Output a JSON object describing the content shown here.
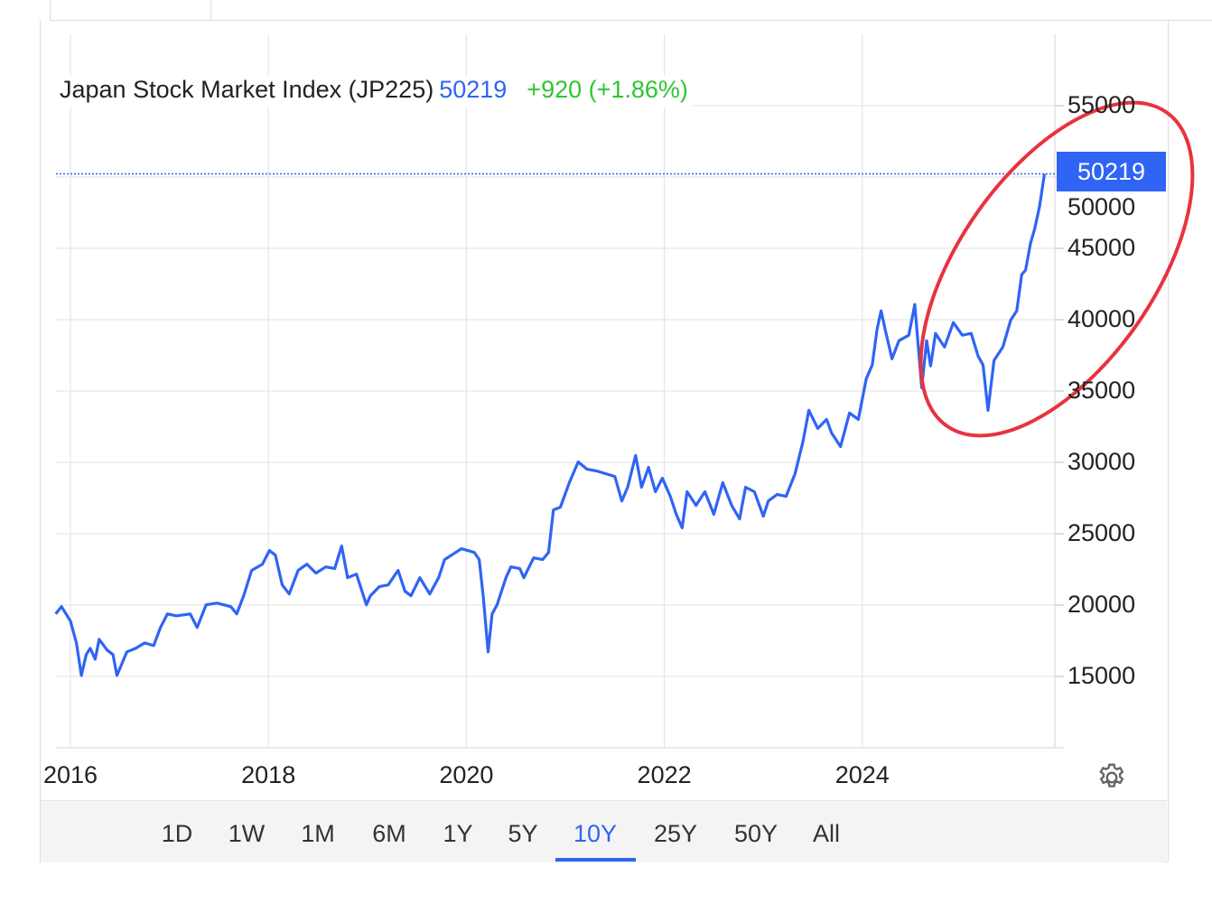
{
  "header": {
    "title": "Japan Stock Market Index (JP225)",
    "price": "50219",
    "change": "+920 (+1.86%)"
  },
  "price_label": "50219",
  "range_tabs": [
    "1D",
    "1W",
    "1M",
    "6M",
    "1Y",
    "5Y",
    "10Y",
    "25Y",
    "50Y",
    "All"
  ],
  "active_range": "10Y",
  "colors": {
    "line": "#2f64f5",
    "up": "#2fc52f",
    "annotation": "#e8333f"
  },
  "chart_data": {
    "type": "line",
    "title": "Japan Stock Market Index (JP225)",
    "xlabel": "",
    "ylabel": "",
    "xlim": [
      2015.85,
      2025.95
    ],
    "ylim": [
      10000,
      60000
    ],
    "x_ticks": [
      "2016",
      "2018",
      "2020",
      "2022",
      "2024"
    ],
    "x_tick_values": [
      2016,
      2018,
      2020,
      2022,
      2024
    ],
    "y_ticks": [
      "15000",
      "20000",
      "25000",
      "30000",
      "35000",
      "40000",
      "45000",
      "50000",
      "55000"
    ],
    "y_tick_values": [
      15000,
      20000,
      25000,
      30000,
      35000,
      40000,
      45000,
      50000,
      55000
    ],
    "grid": true,
    "last_value": 50219,
    "annotation": "red ellipse highlighting 2024-2025 rally",
    "series": [
      {
        "name": "JP225",
        "x": [
          2015.85,
          2015.91,
          2016.0,
          2016.06,
          2016.11,
          2016.16,
          2016.2,
          2016.25,
          2016.29,
          2016.37,
          2016.43,
          2016.47,
          2016.57,
          2016.66,
          2016.75,
          2016.84,
          2016.91,
          2016.98,
          2017.07,
          2017.21,
          2017.28,
          2017.37,
          2017.48,
          2017.62,
          2017.68,
          2017.75,
          2017.83,
          2017.94,
          2018.01,
          2018.07,
          2018.14,
          2018.21,
          2018.3,
          2018.39,
          2018.48,
          2018.58,
          2018.67,
          2018.74,
          2018.8,
          2018.89,
          2018.99,
          2019.03,
          2019.12,
          2019.21,
          2019.31,
          2019.38,
          2019.44,
          2019.53,
          2019.63,
          2019.72,
          2019.78,
          2019.85,
          2019.95,
          2020.08,
          2020.13,
          2020.17,
          2020.22,
          2020.26,
          2020.31,
          2020.4,
          2020.45,
          2020.54,
          2020.58,
          2020.68,
          2020.77,
          2020.83,
          2020.88,
          2020.95,
          2021.04,
          2021.13,
          2021.22,
          2021.32,
          2021.41,
          2021.5,
          2021.57,
          2021.63,
          2021.71,
          2021.77,
          2021.84,
          2021.91,
          2021.98,
          2022.06,
          2022.12,
          2022.18,
          2022.23,
          2022.32,
          2022.41,
          2022.5,
          2022.59,
          2022.68,
          2022.76,
          2022.82,
          2022.91,
          2023.0,
          2023.05,
          2023.14,
          2023.23,
          2023.32,
          2023.4,
          2023.46,
          2023.55,
          2023.64,
          2023.69,
          2023.78,
          2023.87,
          2023.96,
          2024.04,
          2024.1,
          2024.15,
          2024.19,
          2024.24,
          2024.3,
          2024.37,
          2024.47,
          2024.53,
          2024.6,
          2024.65,
          2024.69,
          2024.74,
          2024.83,
          2024.92,
          2025.01,
          2025.1,
          2025.17,
          2025.22,
          2025.27,
          2025.33,
          2025.42,
          2025.5,
          2025.56,
          2025.61,
          2025.65,
          2025.7,
          2025.74,
          2025.79,
          2025.84
        ],
        "values": [
          19380,
          19890,
          18880,
          17350,
          15070,
          16530,
          16970,
          16210,
          17600,
          16850,
          16530,
          15070,
          16720,
          16970,
          17350,
          17160,
          18430,
          19380,
          19250,
          19380,
          18430,
          20020,
          20140,
          19890,
          19380,
          20650,
          22430,
          22870,
          23820,
          23500,
          21410,
          20780,
          22430,
          22870,
          22240,
          22680,
          22560,
          24140,
          21920,
          22170,
          20020,
          20650,
          21290,
          21410,
          22430,
          20970,
          20650,
          21920,
          20780,
          21920,
          23190,
          23500,
          23950,
          23690,
          23190,
          20650,
          16720,
          19380,
          20020,
          21920,
          22680,
          22560,
          21920,
          23310,
          23190,
          23690,
          26670,
          26860,
          28580,
          30030,
          29520,
          29390,
          29200,
          29010,
          27300,
          28260,
          30480,
          28260,
          29650,
          27940,
          28890,
          27620,
          26360,
          25410,
          27940,
          26990,
          27940,
          26360,
          28580,
          26990,
          26040,
          28260,
          27940,
          26230,
          27300,
          27750,
          27620,
          29200,
          31430,
          33650,
          32380,
          33010,
          32060,
          31110,
          33460,
          33010,
          35870,
          36820,
          39350,
          40620,
          39040,
          37260,
          38530,
          38910,
          41070,
          35230,
          38530,
          36760,
          39040,
          38080,
          39800,
          38910,
          39040,
          37450,
          36820,
          33650,
          37130,
          38080,
          39990,
          40620,
          43160,
          43480,
          45380,
          46330,
          47920,
          50219
        ]
      }
    ]
  }
}
